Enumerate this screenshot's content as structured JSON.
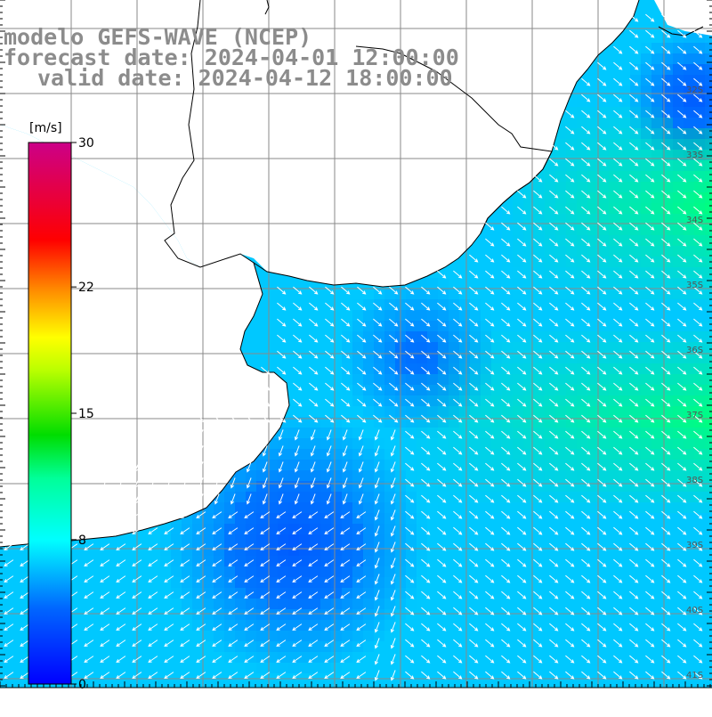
{
  "header": {
    "model_line": "modelo GEFS-WAVE (NCEP)",
    "forecast_line": "forecast date: 2024-04-01 12:00:00",
    "valid_line": "valid date: 2024-04-12 18:00:00"
  },
  "colorbar": {
    "unit": "[m/s]",
    "ticks": [
      {
        "label": "30",
        "value": 30
      },
      {
        "label": "22",
        "value": 22
      },
      {
        "label": "15",
        "value": 15
      },
      {
        "label": "8",
        "value": 8
      },
      {
        "label": "0",
        "value": 0
      }
    ],
    "vmin": 0,
    "vmax": 30
  },
  "map": {
    "lat_labels": [
      "32S",
      "33S",
      "34S",
      "35S",
      "36S",
      "37S",
      "38S",
      "39S",
      "40S",
      "41S"
    ],
    "wind_direction_deg": 320,
    "land_color": "#ffffff",
    "grid_color": "#8a8a8a"
  },
  "colors": {
    "header_text": "#8c8c8c",
    "coast_line": "#000000",
    "arrow": "#ffffff"
  }
}
